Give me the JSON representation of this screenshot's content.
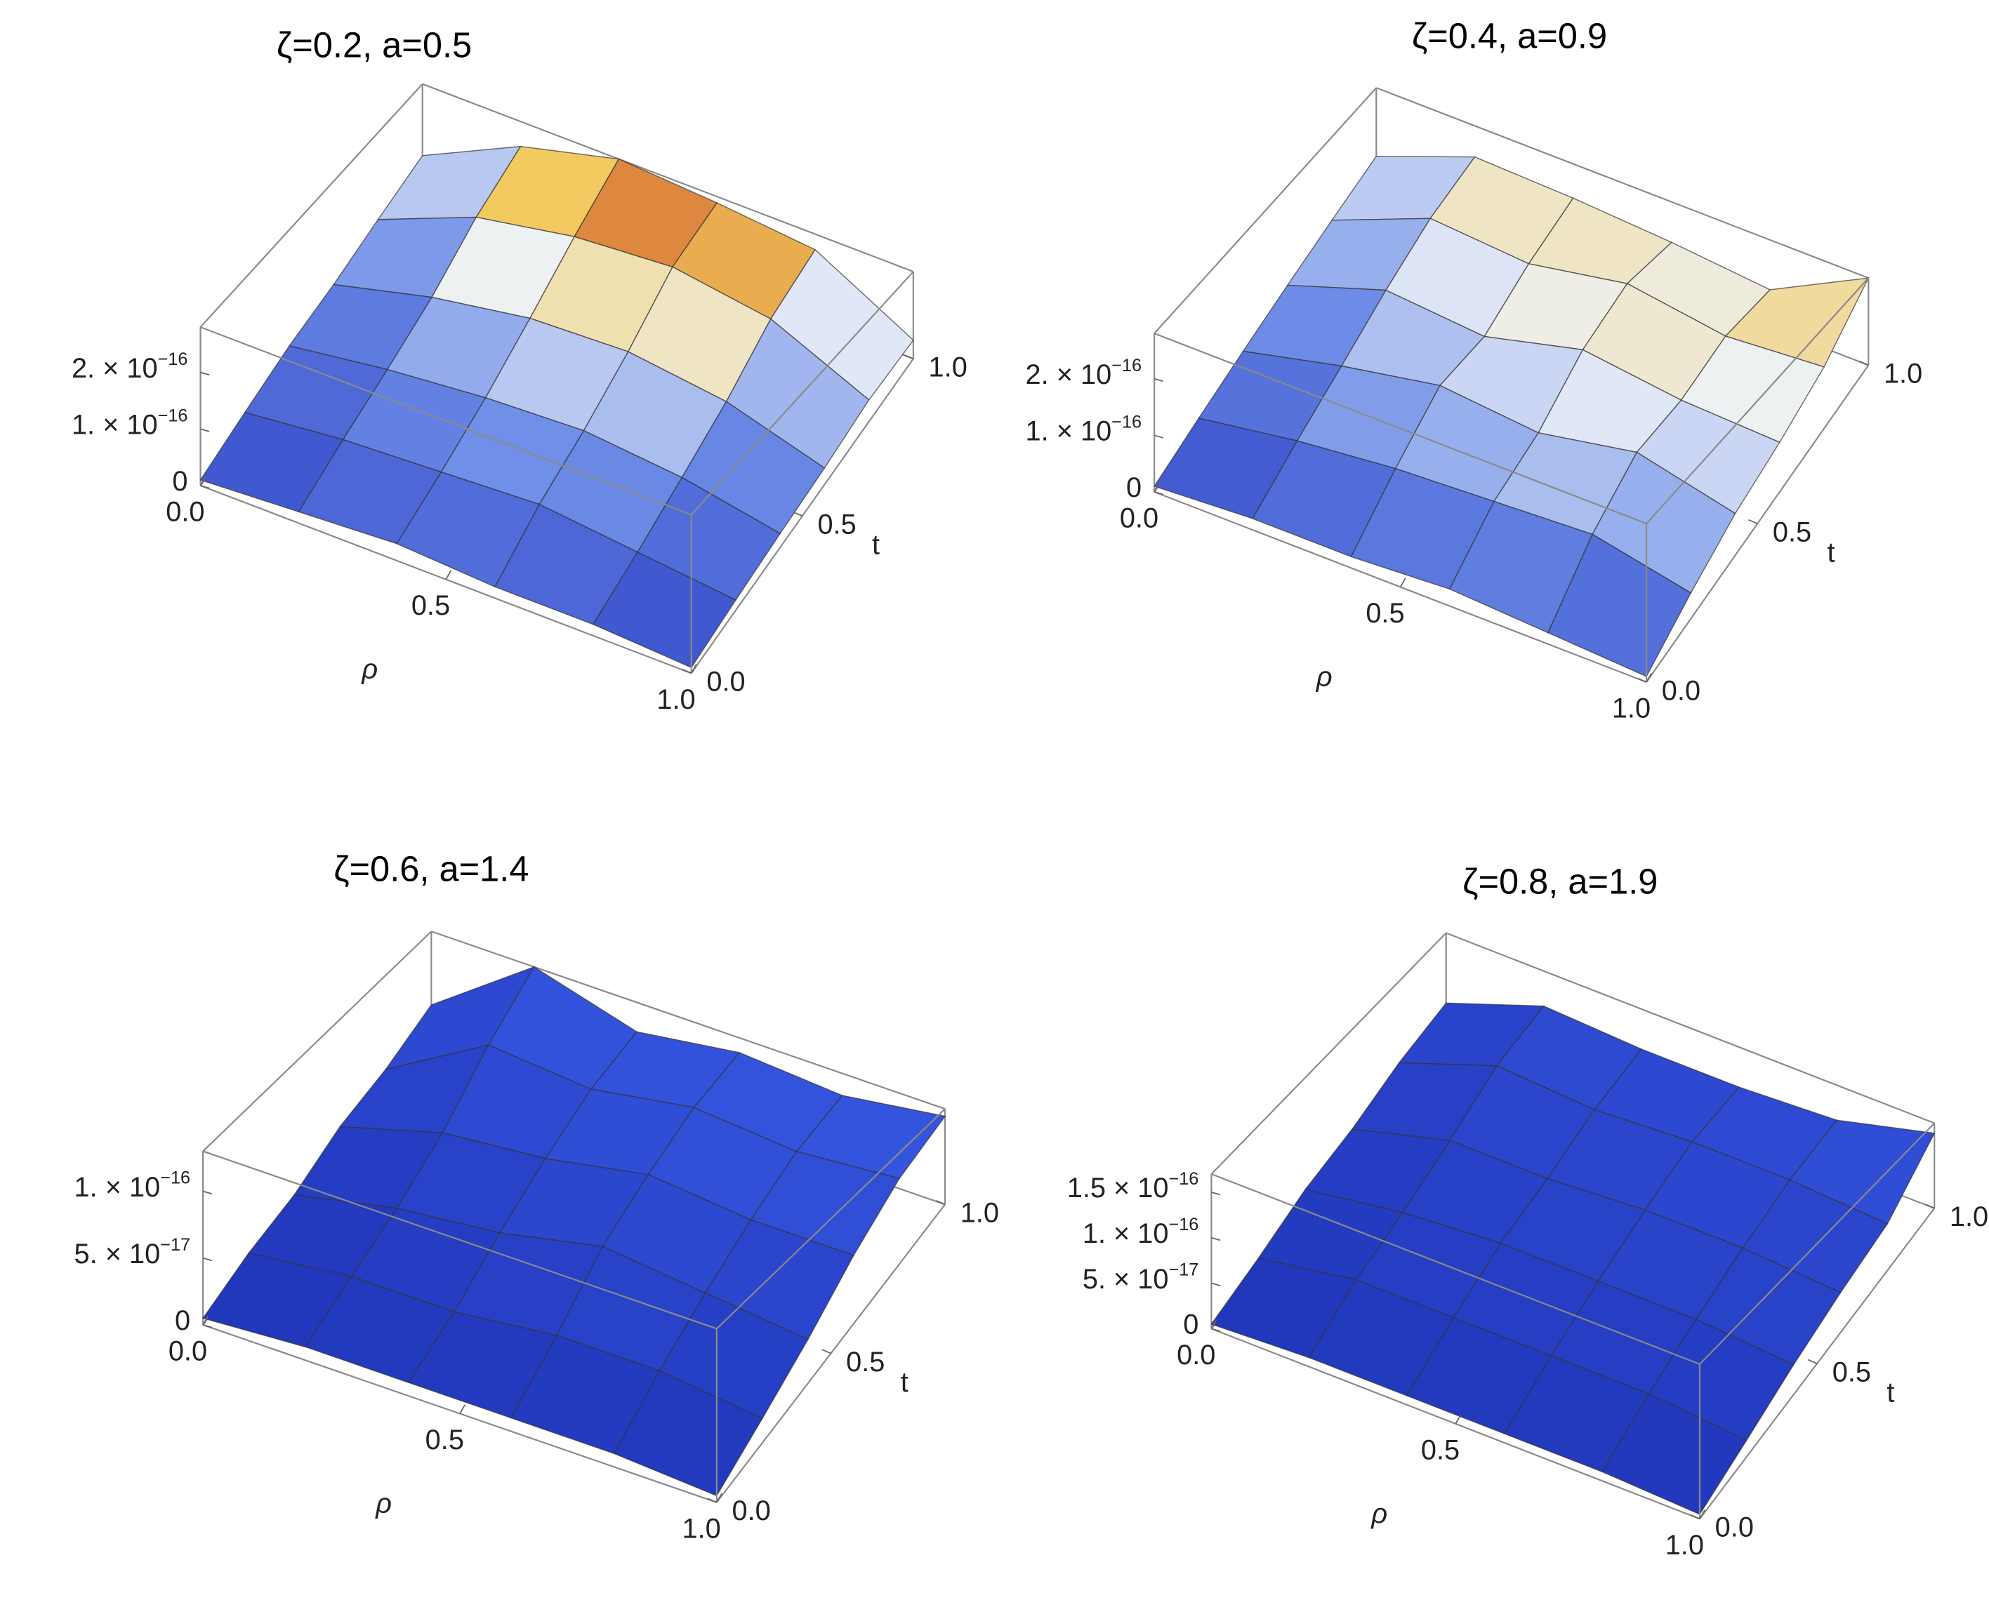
{
  "chart_data": [
    {
      "type": "surface",
      "title": "ζ=0.2, a=0.5",
      "xlabel": "ρ",
      "ylabel": "t",
      "x": [
        0,
        0.2,
        0.4,
        0.6,
        0.8,
        1
      ],
      "y": [
        0,
        0.2,
        0.4,
        0.6,
        0.8,
        1
      ],
      "z": [
        [
          1e-17,
          2e-17,
          3e-17,
          2e-17,
          2e-17,
          1e-17
        ],
        [
          2e-17,
          4e-17,
          5e-17,
          6e-17,
          4e-17,
          2e-17
        ],
        [
          3e-17,
          6e-17,
          8e-17,
          9e-17,
          7e-17,
          3e-17
        ],
        [
          3e-17,
          9e-17,
          1.3e-16,
          1.4e-16,
          1.1e-16,
          4e-17
        ],
        [
          4e-17,
          1.5e-16,
          2e-16,
          2.2e-16,
          1.8e-16,
          6e-17
        ],
        [
          5e-17,
          2e-16,
          2.8e-16,
          2.6e-16,
          2.3e-16,
          6e-17
        ]
      ],
      "xlim": [
        0,
        1
      ],
      "ylim": [
        0,
        1
      ],
      "zlim": [
        0,
        2.8e-16
      ],
      "xticks": [
        {
          "value": 0,
          "label": "0.0"
        },
        {
          "value": 0.5,
          "label": "0.5"
        },
        {
          "value": 1,
          "label": "1.0"
        }
      ],
      "yticks": [
        {
          "value": 0,
          "label": "0.0"
        },
        {
          "value": 0.5,
          "label": "0.5"
        },
        {
          "value": 1,
          "label": "1.0"
        }
      ],
      "zticks": [
        0,
        {
          "value": 1e-16,
          "label": "1. × 10",
          "exponent": "−16"
        },
        {
          "value": 2e-16,
          "label": "2. × 10",
          "exponent": "−16"
        }
      ],
      "colors": [
        "#2a3fc4",
        "#6f8fe8",
        "#eef2f8",
        "#f2c85a",
        "#c0301c"
      ]
    },
    {
      "type": "surface",
      "title": "ζ=0.4, a=0.9",
      "xlabel": "ρ",
      "ylabel": "t",
      "x": [
        0,
        0.2,
        0.4,
        0.6,
        0.8,
        1
      ],
      "y": [
        0,
        0.2,
        0.4,
        0.6,
        0.8,
        1
      ],
      "z": [
        [
          1e-17,
          2e-17,
          2e-17,
          3e-17,
          2e-17,
          1e-17
        ],
        [
          2e-17,
          5e-17,
          7e-17,
          8e-17,
          9e-17,
          5e-17
        ],
        [
          3e-17,
          8e-17,
          1.2e-16,
          1e-16,
          1.4e-16,
          9e-17
        ],
        [
          4e-17,
          1.2e-16,
          1e-16,
          1.6e-16,
          1.3e-16,
          1.2e-16
        ],
        [
          5e-17,
          1.6e-16,
          1.4e-16,
          1.9e-16,
          1.5e-16,
          1.7e-16
        ],
        [
          6e-17,
          1.8e-16,
          1.7e-16,
          1.5e-16,
          1.2e-16,
          2.8e-16
        ]
      ],
      "xlim": [
        0,
        1
      ],
      "ylim": [
        0,
        1
      ],
      "zlim": [
        0,
        2.8e-16
      ],
      "xticks": [
        {
          "value": 0,
          "label": "0.0"
        },
        {
          "value": 0.5,
          "label": "0.5"
        },
        {
          "value": 1,
          "label": "1.0"
        }
      ],
      "yticks": [
        {
          "value": 0,
          "label": "0.0"
        },
        {
          "value": 0.5,
          "label": "0.5"
        },
        {
          "value": 1,
          "label": "1.0"
        }
      ],
      "zticks": [
        0,
        {
          "value": 1e-16,
          "label": "1. × 10",
          "exponent": "−16"
        },
        {
          "value": 2e-16,
          "label": "2. × 10",
          "exponent": "−16"
        }
      ],
      "colors": [
        "#2a3fc4",
        "#6f8fe8",
        "#eef2f8",
        "#f2c85a",
        "#c0301c"
      ]
    },
    {
      "type": "surface",
      "title": "ζ=0.6, a=1.4",
      "xlabel": "ρ",
      "ylabel": "t",
      "x": [
        0,
        0.2,
        0.4,
        0.6,
        0.8,
        1
      ],
      "y": [
        0,
        0.2,
        0.4,
        0.6,
        0.8,
        1
      ],
      "z": [
        [
          5e-18,
          1e-17,
          1e-17,
          1e-17,
          1e-17,
          5e-18
        ],
        [
          1e-17,
          2e-17,
          2e-17,
          3e-17,
          3e-17,
          2e-17
        ],
        [
          1e-17,
          3e-17,
          4e-17,
          6e-17,
          5e-17,
          4e-17
        ],
        [
          2e-17,
          5e-17,
          6e-17,
          8e-17,
          7e-17,
          7e-17
        ],
        [
          2e-17,
          9e-17,
          8e-17,
          1e-16,
          9e-17,
          1e-16
        ],
        [
          3e-17,
          1.3e-16,
          9e-17,
          1.1e-16,
          1e-16,
          1.2e-16
        ]
      ],
      "xlim": [
        0,
        1
      ],
      "ylim": [
        0,
        1
      ],
      "zlim": [
        0,
        1.3e-16
      ],
      "xticks": [
        {
          "value": 0,
          "label": "0.0"
        },
        {
          "value": 0.5,
          "label": "0.5"
        },
        {
          "value": 1,
          "label": "1.0"
        }
      ],
      "yticks": [
        {
          "value": 0,
          "label": "0.0"
        },
        {
          "value": 0.5,
          "label": "0.5"
        },
        {
          "value": 1,
          "label": "1.0"
        }
      ],
      "zticks": [
        0,
        {
          "value": 5e-17,
          "label": "5. × 10",
          "exponent": "−17"
        },
        {
          "value": 1e-16,
          "label": "1. × 10",
          "exponent": "−16"
        }
      ],
      "colors": [
        "#1f35b8",
        "#3a5ce8"
      ]
    },
    {
      "type": "surface",
      "title": "ζ=0.8, a=1.9",
      "xlabel": "ρ",
      "ylabel": "t",
      "x": [
        0,
        0.2,
        0.4,
        0.6,
        0.8,
        1
      ],
      "y": [
        0,
        0.2,
        0.4,
        0.6,
        0.8,
        1
      ],
      "z": [
        [
          5e-18,
          1e-17,
          1e-17,
          1e-17,
          1e-17,
          5e-18
        ],
        [
          1e-17,
          3e-17,
          3e-17,
          3e-17,
          3e-17,
          2e-17
        ],
        [
          2e-17,
          4e-17,
          5e-17,
          5e-17,
          5e-17,
          4e-17
        ],
        [
          2e-17,
          6e-17,
          6e-17,
          7e-17,
          7e-17,
          6e-17
        ],
        [
          3e-17,
          9e-17,
          8e-17,
          9e-17,
          9e-17,
          8e-17
        ],
        [
          3e-17,
          1e-16,
          9e-17,
          9e-17,
          1e-16,
          1.5e-16
        ]
      ],
      "xlim": [
        0,
        1
      ],
      "ylim": [
        0,
        1
      ],
      "zlim": [
        0,
        1.7e-16
      ],
      "xticks": [
        {
          "value": 0,
          "label": "0.0"
        },
        {
          "value": 0.5,
          "label": "0.5"
        },
        {
          "value": 1,
          "label": "1.0"
        }
      ],
      "yticks": [
        {
          "value": 0,
          "label": "0.0"
        },
        {
          "value": 0.5,
          "label": "0.5"
        },
        {
          "value": 1,
          "label": "1.0"
        }
      ],
      "zticks": [
        0,
        {
          "value": 5e-17,
          "label": "5. × 10",
          "exponent": "−17"
        },
        {
          "value": 1e-16,
          "label": "1. × 10",
          "exponent": "−16"
        },
        {
          "value": 1.5e-16,
          "label": "1.5 × 10",
          "exponent": "−16"
        }
      ],
      "colors": [
        "#1f35b8",
        "#3a5ce8"
      ]
    }
  ]
}
